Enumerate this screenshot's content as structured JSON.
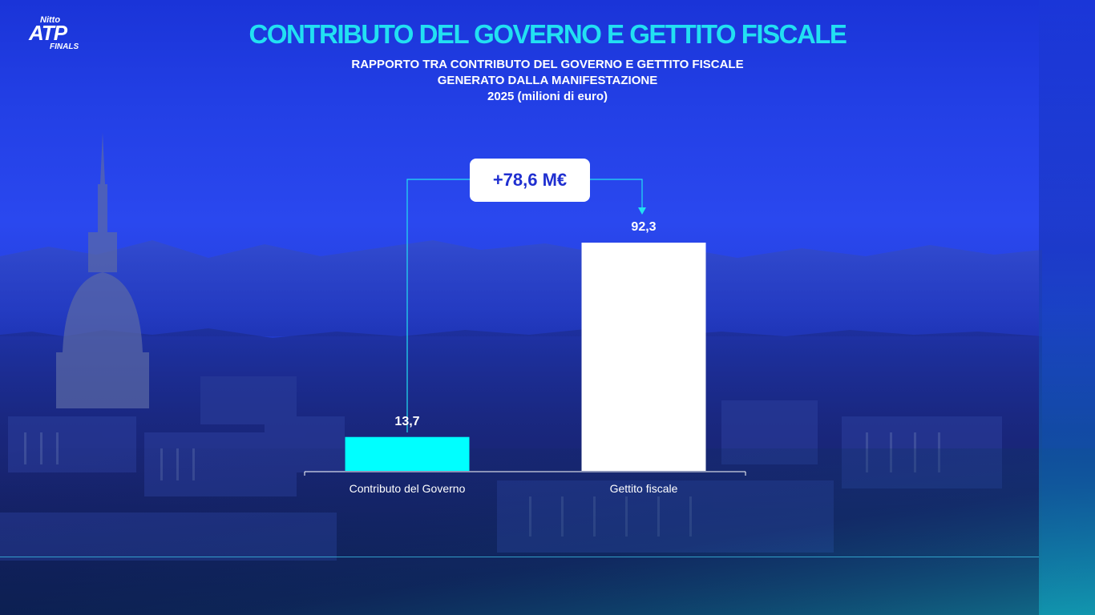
{
  "brand": {
    "nitto": "Nitto",
    "atp": "ATP",
    "finals": "FINALS"
  },
  "colors": {
    "accent": "#22e0f2",
    "bar_governo": "#00ffff",
    "bar_gettito": "#ffffff",
    "badge_text": "#1f2fd0"
  },
  "chart_data": {
    "type": "bar",
    "title": "CONTRIBUTO DEL GOVERNO E GETTITO FISCALE",
    "subtitle_lines": [
      "RAPPORTO TRA CONTRIBUTO DEL GOVERNO E GETTITO FISCALE",
      "GENERATO DALLA MANIFESTAZIONE",
      "2025 (milioni di euro)"
    ],
    "categories": [
      "Contributo del Governo",
      "Gettito fiscale"
    ],
    "values": [
      13.7,
      92.3
    ],
    "value_labels": [
      "13,7",
      "92,3"
    ],
    "difference_label": "+78,6 M€",
    "xlabel": "",
    "ylabel": "",
    "grid": false
  }
}
